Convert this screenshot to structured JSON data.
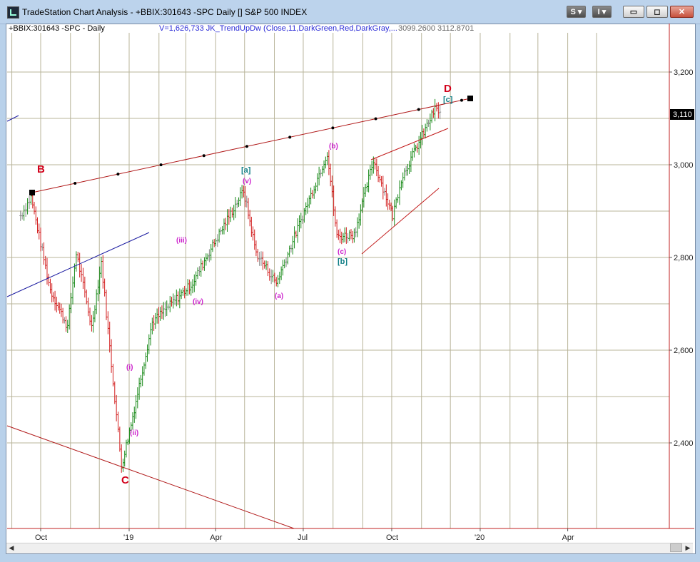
{
  "window": {
    "title": "TradeStation Chart Analysis - +BBIX:301643 -SPC Daily [] S&P 500 INDEX",
    "buttons": {
      "s_label": "S ▾",
      "i_label": "I ▾"
    }
  },
  "status": {
    "symbol": "+BBIX:301643 -SPC - Daily",
    "indicator": "V=1,626,733  JK_TrendUpDw  (Close,11,DarkGreen,Red,DarkGray,...",
    "values": "3099.2600  3112.8701"
  },
  "colors": {
    "up": "#1a8a1a",
    "down": "#d21e1e",
    "neutral": "#888888",
    "grid": "#b8b49a",
    "accent_blue": "#1a1aa0",
    "wave_red": "#d2001a",
    "wave_magenta": "#cc22cc",
    "wave_teal": "#117f86"
  },
  "chart_data": {
    "type": "ohlc",
    "price_axis": {
      "labels": [
        "3,200",
        "3,000",
        "2,800",
        "2,600",
        "2,400"
      ],
      "last_price_label": "3,110"
    },
    "time_axis": {
      "labels": [
        "Oct",
        "'19",
        "Apr",
        "Jul",
        "Oct",
        "'20",
        "Apr"
      ]
    },
    "close_path": [
      {
        "date": "2018-09-10",
        "close": 2890
      },
      {
        "date": "2018-09-21",
        "close": 2930
      },
      {
        "date": "2018-10-11",
        "close": 2730
      },
      {
        "date": "2018-10-29",
        "close": 2650
      },
      {
        "date": "2018-11-07",
        "close": 2810
      },
      {
        "date": "2018-11-23",
        "close": 2650
      },
      {
        "date": "2018-12-03",
        "close": 2790
      },
      {
        "date": "2018-12-24",
        "close": 2350
      },
      {
        "date": "2019-01-03",
        "close": 2440
      },
      {
        "date": "2019-01-25",
        "close": 2660
      },
      {
        "date": "2019-03-08",
        "close": 2745
      },
      {
        "date": "2019-03-22",
        "close": 2800
      },
      {
        "date": "2019-04-30",
        "close": 2945
      },
      {
        "date": "2019-05-13",
        "close": 2810
      },
      {
        "date": "2019-06-03",
        "close": 2745
      },
      {
        "date": "2019-07-26",
        "close": 3025
      },
      {
        "date": "2019-08-05",
        "close": 2845
      },
      {
        "date": "2019-08-23",
        "close": 2850
      },
      {
        "date": "2019-09-12",
        "close": 3010
      },
      {
        "date": "2019-10-02",
        "close": 2890
      },
      {
        "date": "2019-10-11",
        "close": 2970
      },
      {
        "date": "2019-11-15",
        "close": 3120
      },
      {
        "date": "2019-11-22",
        "close": 3110
      }
    ],
    "annotations": [
      {
        "label": "B",
        "kind": "major"
      },
      {
        "label": "C",
        "kind": "major"
      },
      {
        "label": "D",
        "kind": "major"
      },
      {
        "label": "[a]",
        "kind": "intermediate"
      },
      {
        "label": "[b]",
        "kind": "intermediate"
      },
      {
        "label": "[c]",
        "kind": "intermediate"
      },
      {
        "label": "(i)",
        "kind": "minor"
      },
      {
        "label": "(ii)",
        "kind": "minor"
      },
      {
        "label": "(iii)",
        "kind": "minor"
      },
      {
        "label": "(iv)",
        "kind": "minor"
      },
      {
        "label": "(v)",
        "kind": "minor"
      },
      {
        "label": "(a)",
        "kind": "minor"
      },
      {
        "label": "(b)",
        "kind": "minor"
      },
      {
        "label": "(c)",
        "kind": "minor"
      }
    ]
  }
}
